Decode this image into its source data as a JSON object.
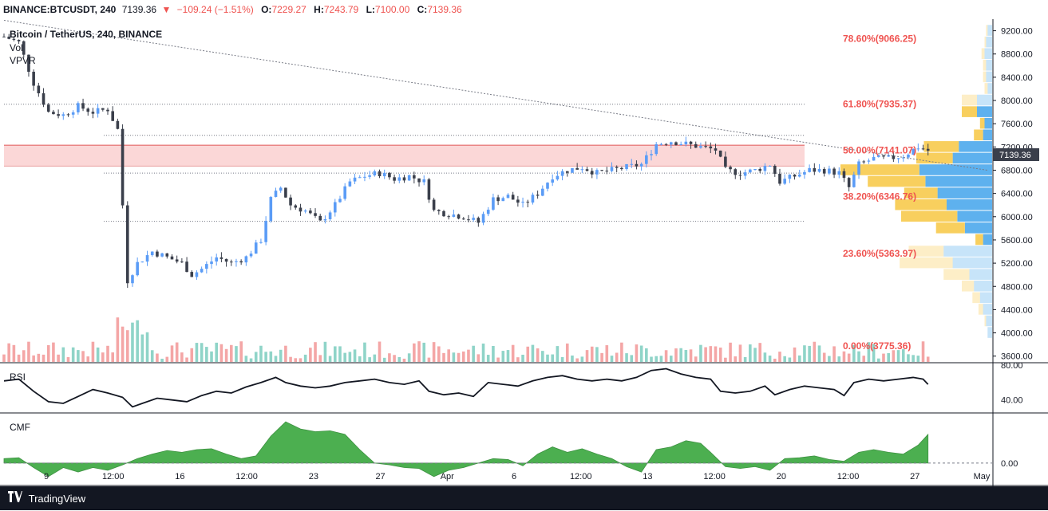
{
  "header": {
    "symbol": "BINANCE:BTCUSDT, 240",
    "last": "7139.36",
    "change": "−109.24 (−1.51%)",
    "o_label": "O:",
    "o": "7229.27",
    "h_label": "H:",
    "h": "7243.79",
    "l_label": "L:",
    "l": "7100.00",
    "c_label": "C:",
    "c": "7139.36"
  },
  "legend": {
    "title": "Bitcoin / TetherUS, 240, BINANCE",
    "vol": "Vol",
    "vpvr": "VPVR",
    "rsi": "RSI",
    "cmf": "CMF"
  },
  "footer": {
    "brand": "TradingView"
  },
  "colors": {
    "up": "#5b9cf6",
    "down": "#3a3f4b",
    "vol_up": "#8fd4c8",
    "vol_down": "#f4a6a6",
    "fib_label": "#ef5350",
    "zone": "#fbd7d7",
    "zone_line": "#e05656",
    "cmf_fill": "#4caf50",
    "vp_up": "#5eb1ee",
    "vp_down": "#f8cf5e"
  },
  "chart_data": [
    {
      "type": "candlestick",
      "title": "Bitcoin / TetherUS, 240, BINANCE",
      "ylim": [
        3500,
        9400
      ],
      "y_ticks": [
        "9200.00",
        "8800.00",
        "8400.00",
        "8000.00",
        "7600.00",
        "7200.00",
        "6800.00",
        "6400.00",
        "6000.00",
        "5600.00",
        "5200.00",
        "4800.00",
        "4400.00",
        "4000.00",
        "3600.00"
      ],
      "x_ticks": [
        "9",
        "12:00",
        "16",
        "12:00",
        "23",
        "27",
        "Apr",
        "6",
        "12:00",
        "13",
        "12:00",
        "20",
        "12:00",
        "27",
        "May"
      ],
      "last_price_label": "7139.36",
      "close_path": [
        [
          0,
          9100
        ],
        [
          3,
          9000
        ],
        [
          6,
          8300
        ],
        [
          9,
          7800
        ],
        [
          12,
          7750
        ],
        [
          15,
          7900
        ],
        [
          18,
          7800
        ],
        [
          21,
          7850
        ],
        [
          23,
          7500
        ],
        [
          25,
          4900
        ],
        [
          27,
          5200
        ],
        [
          30,
          5400
        ],
        [
          33,
          5300
        ],
        [
          36,
          5200
        ],
        [
          38,
          5000
        ],
        [
          40,
          5100
        ],
        [
          43,
          5300
        ],
        [
          46,
          5200
        ],
        [
          49,
          5300
        ],
        [
          52,
          5600
        ],
        [
          54,
          6300
        ],
        [
          56,
          6500
        ],
        [
          58,
          6200
        ],
        [
          61,
          6100
        ],
        [
          64,
          5900
        ],
        [
          67,
          6200
        ],
        [
          70,
          6600
        ],
        [
          73,
          6700
        ],
        [
          76,
          6750
        ],
        [
          79,
          6650
        ],
        [
          82,
          6700
        ],
        [
          85,
          6600
        ],
        [
          87,
          6100
        ],
        [
          90,
          6050
        ],
        [
          93,
          6000
        ],
        [
          96,
          5900
        ],
        [
          99,
          6300
        ],
        [
          102,
          6350
        ],
        [
          105,
          6200
        ],
        [
          108,
          6400
        ],
        [
          111,
          6700
        ],
        [
          114,
          6800
        ],
        [
          117,
          6850
        ],
        [
          120,
          6750
        ],
        [
          123,
          6800
        ],
        [
          126,
          6850
        ],
        [
          129,
          6900
        ],
        [
          132,
          7250
        ],
        [
          135,
          7300
        ],
        [
          138,
          7250
        ],
        [
          141,
          7200
        ],
        [
          144,
          7150
        ],
        [
          146,
          6800
        ],
        [
          149,
          6750
        ],
        [
          152,
          6800
        ],
        [
          155,
          6900
        ],
        [
          157,
          6600
        ],
        [
          160,
          6700
        ],
        [
          163,
          6800
        ],
        [
          166,
          6800
        ],
        [
          169,
          6750
        ],
        [
          171,
          6500
        ],
        [
          173,
          6900
        ],
        [
          176,
          7000
        ],
        [
          179,
          7000
        ],
        [
          182,
          7050
        ],
        [
          185,
          7200
        ],
        [
          187,
          7139.36
        ]
      ],
      "annotations": [
        {
          "text": "78.60%(9066.25)",
          "value": 9066.25
        },
        {
          "text": "61.80%(7935.37)",
          "value": 7935.37
        },
        {
          "text": "50.00%(7141.07)",
          "value": 7141.07
        },
        {
          "text": "38.20%(6346.76)",
          "value": 6346.76
        },
        {
          "text": "23.60%(5363.97)",
          "value": 5363.97
        },
        {
          "text": "0.00%(3775.36)",
          "value": 3775.36
        }
      ],
      "horizontal_levels": [
        7935.37,
        7400,
        6750,
        5920
      ],
      "zone": [
        6870,
        7230
      ],
      "trendline": [
        [
          0,
          9380
        ],
        [
          199,
          6800
        ]
      ]
    },
    {
      "type": "line",
      "title": "RSI",
      "ylim": [
        25,
        82
      ],
      "y_ticks": [
        "80.00",
        "40.00"
      ],
      "points": [
        [
          0,
          62
        ],
        [
          3,
          64
        ],
        [
          6,
          50
        ],
        [
          9,
          38
        ],
        [
          12,
          36
        ],
        [
          15,
          44
        ],
        [
          18,
          52
        ],
        [
          21,
          48
        ],
        [
          24,
          43
        ],
        [
          26,
          32
        ],
        [
          28,
          36
        ],
        [
          31,
          42
        ],
        [
          34,
          40
        ],
        [
          37,
          38
        ],
        [
          40,
          45
        ],
        [
          43,
          50
        ],
        [
          46,
          48
        ],
        [
          49,
          55
        ],
        [
          52,
          60
        ],
        [
          55,
          66
        ],
        [
          57,
          60
        ],
        [
          60,
          56
        ],
        [
          63,
          54
        ],
        [
          66,
          56
        ],
        [
          69,
          60
        ],
        [
          72,
          62
        ],
        [
          75,
          64
        ],
        [
          78,
          60
        ],
        [
          81,
          58
        ],
        [
          84,
          62
        ],
        [
          86,
          50
        ],
        [
          89,
          46
        ],
        [
          92,
          48
        ],
        [
          95,
          44
        ],
        [
          98,
          60
        ],
        [
          101,
          58
        ],
        [
          104,
          56
        ],
        [
          107,
          62
        ],
        [
          110,
          66
        ],
        [
          113,
          68
        ],
        [
          116,
          64
        ],
        [
          119,
          62
        ],
        [
          122,
          64
        ],
        [
          125,
          62
        ],
        [
          128,
          66
        ],
        [
          131,
          74
        ],
        [
          134,
          76
        ],
        [
          137,
          70
        ],
        [
          140,
          66
        ],
        [
          143,
          64
        ],
        [
          145,
          50
        ],
        [
          148,
          48
        ],
        [
          151,
          50
        ],
        [
          154,
          56
        ],
        [
          156,
          46
        ],
        [
          159,
          52
        ],
        [
          162,
          56
        ],
        [
          165,
          54
        ],
        [
          168,
          52
        ],
        [
          170,
          45
        ],
        [
          172,
          60
        ],
        [
          175,
          64
        ],
        [
          178,
          62
        ],
        [
          181,
          64
        ],
        [
          184,
          66
        ],
        [
          186,
          64
        ],
        [
          187,
          58
        ]
      ]
    },
    {
      "type": "area",
      "title": "CMF",
      "ylim": [
        -0.25,
        0.55
      ],
      "y_ticks": [
        "0.00"
      ],
      "points": [
        [
          0,
          0.05
        ],
        [
          3,
          0.06
        ],
        [
          6,
          -0.05
        ],
        [
          9,
          -0.15
        ],
        [
          12,
          -0.05
        ],
        [
          15,
          -0.1
        ],
        [
          18,
          -0.05
        ],
        [
          21,
          -0.08
        ],
        [
          24,
          -0.02
        ],
        [
          27,
          0.05
        ],
        [
          30,
          0.1
        ],
        [
          33,
          0.14
        ],
        [
          36,
          0.12
        ],
        [
          39,
          0.15
        ],
        [
          42,
          0.16
        ],
        [
          45,
          0.1
        ],
        [
          48,
          0.05
        ],
        [
          51,
          0.08
        ],
        [
          54,
          0.3
        ],
        [
          57,
          0.46
        ],
        [
          60,
          0.38
        ],
        [
          63,
          0.35
        ],
        [
          66,
          0.36
        ],
        [
          69,
          0.32
        ],
        [
          72,
          0.15
        ],
        [
          75,
          0.0
        ],
        [
          78,
          -0.02
        ],
        [
          81,
          -0.05
        ],
        [
          84,
          -0.06
        ],
        [
          87,
          -0.15
        ],
        [
          90,
          -0.08
        ],
        [
          93,
          -0.05
        ],
        [
          96,
          0.0
        ],
        [
          99,
          0.05
        ],
        [
          102,
          0.04
        ],
        [
          105,
          -0.03
        ],
        [
          108,
          0.1
        ],
        [
          111,
          0.18
        ],
        [
          114,
          0.12
        ],
        [
          117,
          0.16
        ],
        [
          120,
          0.1
        ],
        [
          123,
          0.05
        ],
        [
          126,
          -0.04
        ],
        [
          129,
          -0.1
        ],
        [
          132,
          0.15
        ],
        [
          135,
          0.18
        ],
        [
          138,
          0.25
        ],
        [
          141,
          0.22
        ],
        [
          143,
          0.12
        ],
        [
          146,
          -0.04
        ],
        [
          149,
          -0.06
        ],
        [
          152,
          -0.04
        ],
        [
          155,
          -0.08
        ],
        [
          158,
          0.05
        ],
        [
          161,
          0.06
        ],
        [
          164,
          0.08
        ],
        [
          167,
          0.04
        ],
        [
          170,
          0.02
        ],
        [
          173,
          0.12
        ],
        [
          176,
          0.15
        ],
        [
          179,
          0.12
        ],
        [
          182,
          0.1
        ],
        [
          185,
          0.2
        ],
        [
          187,
          0.32
        ]
      ]
    },
    {
      "type": "bar",
      "title": "VPVR",
      "rows": [
        {
          "price": 9200,
          "up": 0.03,
          "down": 0.01
        },
        {
          "price": 9000,
          "up": 0.04,
          "down": 0.01
        },
        {
          "price": 8800,
          "up": 0.05,
          "down": 0.02
        },
        {
          "price": 8600,
          "up": 0.04,
          "down": 0.02
        },
        {
          "price": 8400,
          "up": 0.04,
          "down": 0.02
        },
        {
          "price": 8200,
          "up": 0.03,
          "down": 0.02
        },
        {
          "price": 8000,
          "up": 0.1,
          "down": 0.1
        },
        {
          "price": 7800,
          "up": 0.1,
          "down": 0.1
        },
        {
          "price": 7600,
          "up": 0.05,
          "down": 0.03
        },
        {
          "price": 7400,
          "up": 0.06,
          "down": 0.06
        },
        {
          "price": 7200,
          "up": 0.22,
          "down": 0.23
        },
        {
          "price": 7000,
          "up": 0.26,
          "down": 0.24
        },
        {
          "price": 6800,
          "up": 0.48,
          "down": 0.52
        },
        {
          "price": 6600,
          "up": 0.44,
          "down": 0.38
        },
        {
          "price": 6400,
          "up": 0.36,
          "down": 0.22
        },
        {
          "price": 6200,
          "up": 0.3,
          "down": 0.34
        },
        {
          "price": 6000,
          "up": 0.23,
          "down": 0.37
        },
        {
          "price": 5800,
          "up": 0.18,
          "down": 0.19
        },
        {
          "price": 5600,
          "up": 0.06,
          "down": 0.05
        },
        {
          "price": 5400,
          "up": 0.32,
          "down": 0.23
        },
        {
          "price": 5200,
          "up": 0.26,
          "down": 0.35
        },
        {
          "price": 5000,
          "up": 0.15,
          "down": 0.17
        },
        {
          "price": 4800,
          "up": 0.12,
          "down": 0.08
        },
        {
          "price": 4600,
          "up": 0.08,
          "down": 0.05
        },
        {
          "price": 4400,
          "up": 0.06,
          "down": 0.03
        },
        {
          "price": 4200,
          "up": 0.04,
          "down": 0.01
        },
        {
          "price": 4000,
          "up": 0.03,
          "down": 0.0
        }
      ]
    }
  ]
}
